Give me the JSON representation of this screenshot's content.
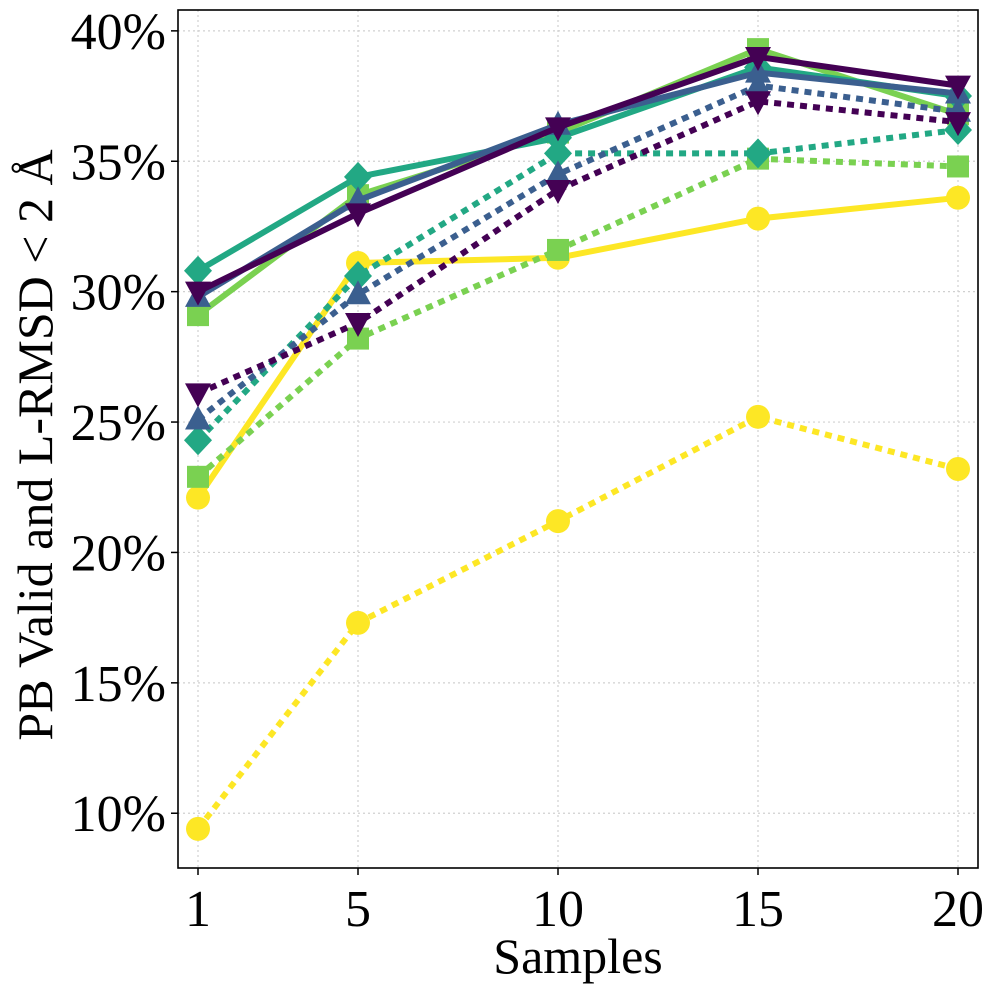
{
  "chart_data": {
    "type": "line",
    "xlabel": "Samples",
    "ylabel": "PB Valid and L-RMSD < 2 Å",
    "x": [
      1,
      5,
      10,
      15,
      20
    ],
    "x_tick_labels": [
      "1",
      "5",
      "10",
      "15",
      "20"
    ],
    "xlim": [
      0.5,
      20.5
    ],
    "ylim": [
      7.9,
      40.8
    ],
    "y_ticks": [
      10,
      15,
      20,
      25,
      30,
      35,
      40
    ],
    "y_tick_labels": [
      "10%",
      "15%",
      "20%",
      "25%",
      "30%",
      "35%",
      "40%"
    ],
    "grid": true,
    "legend": "none",
    "series": [
      {
        "name": "circle-dotted",
        "color": "#fde725",
        "marker": "circle",
        "linestyle": "dotted",
        "values": [
          9.4,
          17.3,
          21.2,
          25.2,
          23.2
        ]
      },
      {
        "name": "circle-solid",
        "color": "#fde725",
        "marker": "circle",
        "linestyle": "solid",
        "values": [
          22.1,
          31.1,
          31.3,
          32.8,
          33.6
        ]
      },
      {
        "name": "square-dotted",
        "color": "#7ad151",
        "marker": "square",
        "linestyle": "dotted",
        "values": [
          22.9,
          28.2,
          31.6,
          35.1,
          34.8
        ]
      },
      {
        "name": "square-solid",
        "color": "#7ad151",
        "marker": "square",
        "linestyle": "solid",
        "values": [
          29.1,
          33.7,
          36.1,
          39.3,
          36.8
        ]
      },
      {
        "name": "diamond-dotted",
        "color": "#22a884",
        "marker": "diamond",
        "linestyle": "dotted",
        "values": [
          24.3,
          30.6,
          35.3,
          35.3,
          36.2
        ]
      },
      {
        "name": "diamond-solid",
        "color": "#22a884",
        "marker": "diamond",
        "linestyle": "solid",
        "values": [
          30.8,
          34.4,
          35.9,
          38.6,
          37.5
        ]
      },
      {
        "name": "triangle-up-dotted",
        "color": "#3b5f8f",
        "marker": "triangle-up",
        "linestyle": "dotted",
        "values": [
          25.1,
          29.9,
          34.5,
          37.9,
          36.9
        ]
      },
      {
        "name": "triangle-up-solid",
        "color": "#3b5f8f",
        "marker": "triangle-up",
        "linestyle": "solid",
        "values": [
          29.8,
          33.5,
          36.4,
          38.4,
          37.6
        ]
      },
      {
        "name": "triangle-down-dotted",
        "color": "#440154",
        "marker": "triangle-down",
        "linestyle": "dotted",
        "values": [
          26.1,
          28.8,
          33.9,
          37.3,
          36.5
        ]
      },
      {
        "name": "triangle-down-solid",
        "color": "#440154",
        "marker": "triangle-down",
        "linestyle": "solid",
        "values": [
          30.0,
          33.0,
          36.3,
          39.0,
          37.9
        ]
      }
    ]
  }
}
